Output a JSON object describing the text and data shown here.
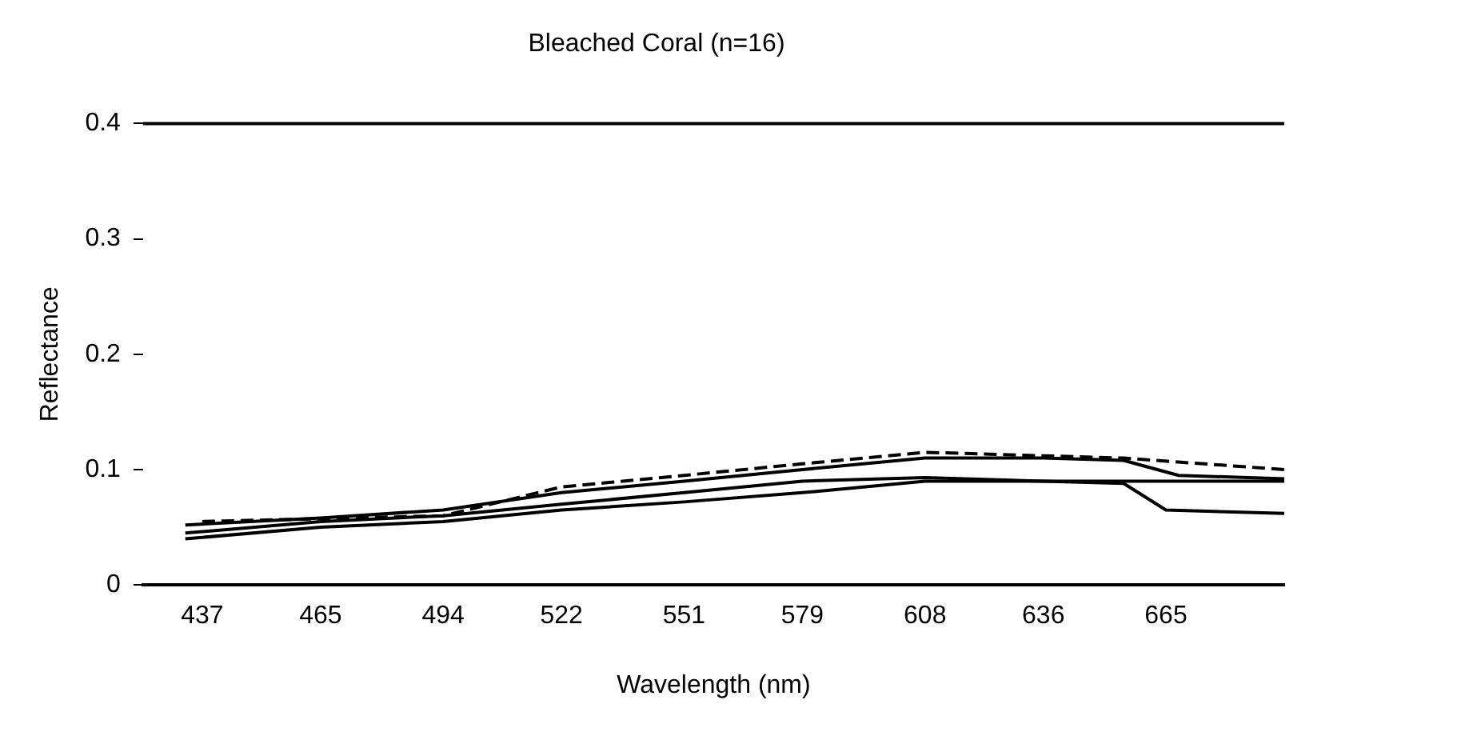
{
  "chart_data": {
    "type": "line",
    "title": "Bleached Coral (n=16)",
    "xlabel": "Wavelength (nm)",
    "ylabel": "Reflectance",
    "xlim": [
      423,
      693
    ],
    "xticks": [
      437,
      465,
      494,
      522,
      551,
      579,
      608,
      636,
      665
    ],
    "ylim": [
      0,
      0.4
    ],
    "yticks": [
      0,
      0.1,
      0.2,
      0.3,
      0.4
    ],
    "grid": false,
    "legend": false,
    "marker": "none",
    "line_style": "solid",
    "series": [
      {
        "color": "#000000",
        "x": [
          433,
          465,
          494,
          522,
          551,
          579,
          608,
          636,
          655,
          665,
          693
        ],
        "values": [
          0.04,
          0.05,
          0.055,
          0.065,
          0.072,
          0.08,
          0.09,
          0.09,
          0.088,
          0.065,
          0.062
        ]
      },
      {
        "color": "#000000",
        "x": [
          433,
          465,
          494,
          522,
          551,
          579,
          608,
          636,
          655,
          693
        ],
        "values": [
          0.045,
          0.055,
          0.06,
          0.07,
          0.08,
          0.09,
          0.093,
          0.09,
          0.09,
          0.09
        ]
      },
      {
        "color": "#000000",
        "x": [
          433,
          465,
          494,
          522,
          551,
          579,
          608,
          636,
          655,
          668,
          693
        ],
        "values": [
          0.052,
          0.058,
          0.065,
          0.08,
          0.09,
          0.1,
          0.11,
          0.11,
          0.108,
          0.095,
          0.092
        ]
      },
      {
        "color": "#000000",
        "line_style": "dashed",
        "x": [
          437,
          494,
          522,
          551,
          579,
          608,
          636,
          655,
          693
        ],
        "values": [
          0.055,
          0.06,
          0.085,
          0.095,
          0.105,
          0.115,
          0.112,
          0.11,
          0.1
        ]
      }
    ]
  }
}
